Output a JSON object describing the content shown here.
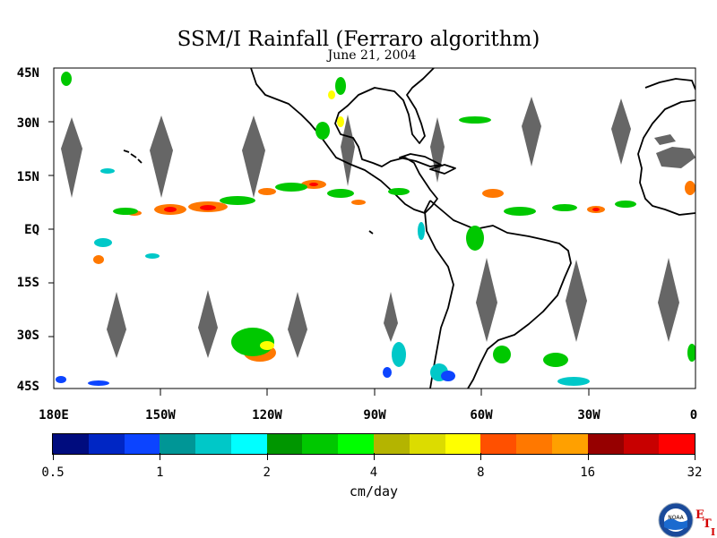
{
  "title": "SSM/I Rainfall (Ferraro algorithm)",
  "subtitle": "June 21, 2004",
  "map": {
    "lat_labels": [
      "45N",
      "30N",
      "15N",
      "EQ",
      "15S",
      "30S",
      "45S"
    ],
    "lon_labels": [
      "180E",
      "150W",
      "120W",
      "90W",
      "60W",
      "30W",
      "0"
    ],
    "land_outline_color": "#000000",
    "no_data_color": "#666666"
  },
  "colorbar": {
    "colors": [
      "#000c7e",
      "#0026c4",
      "#0c44ff",
      "#009696",
      "#00c8c8",
      "#00ffff",
      "#009600",
      "#00c800",
      "#00ff00",
      "#b4b400",
      "#dcdc00",
      "#ffff00",
      "#ff5000",
      "#ff7800",
      "#ffa000",
      "#960000",
      "#c80000",
      "#ff0000"
    ],
    "tick_labels": [
      "0.5",
      "1",
      "2",
      "4",
      "8",
      "16",
      "32"
    ],
    "units": "cm/day"
  },
  "logo": {
    "icon": "noaa-logo-icon",
    "text": "NOAA",
    "letters": [
      "E",
      "T",
      "I"
    ]
  }
}
